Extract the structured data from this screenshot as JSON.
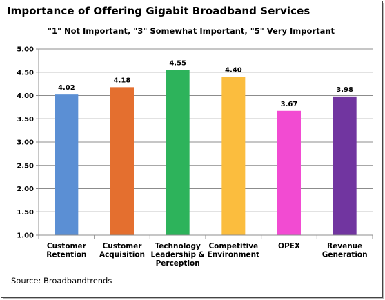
{
  "chart_data": {
    "type": "bar",
    "title": "Importance of Offering Gigabit Broadband Services",
    "subtitle": "\"1\" Not Important, \"3\" Somewhat Important, \"5\" Very Important",
    "categories": [
      [
        "Customer",
        "Retention"
      ],
      [
        "Customer",
        "Acquisition"
      ],
      [
        "Technology",
        "Leadership &",
        "Perception"
      ],
      [
        "Competitive",
        "Environment"
      ],
      [
        "OPEX"
      ],
      [
        "Revenue",
        "Generation"
      ]
    ],
    "values": [
      4.02,
      4.18,
      4.55,
      4.4,
      3.67,
      3.98
    ],
    "data_labels": [
      "4.02",
      "4.18",
      "4.55",
      "4.40",
      "3.67",
      "3.98"
    ],
    "colors": [
      "#5b8fd4",
      "#e46f2f",
      "#2db35b",
      "#fbbd3e",
      "#f24bd2",
      "#7135a0"
    ],
    "ylim": [
      1.0,
      5.0
    ],
    "yticks": [
      "1.00",
      "1.50",
      "2.00",
      "2.50",
      "3.00",
      "3.50",
      "4.00",
      "4.50",
      "5.00"
    ],
    "grid": true,
    "xlabel": "",
    "ylabel": ""
  },
  "source": "Source:  Broadbandtrends"
}
